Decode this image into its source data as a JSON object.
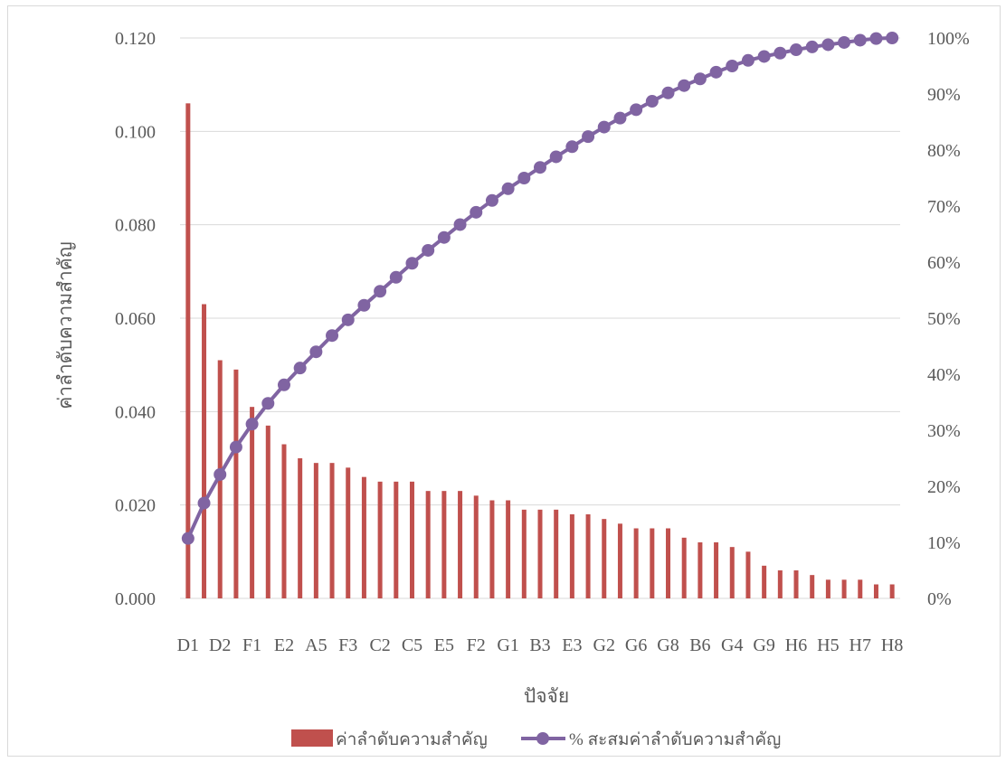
{
  "chart_data": {
    "type": "bar+line",
    "xlabel": "ปัจจัย",
    "ylabel": "ค่าลำดับความสำคัญ",
    "ylim": [
      0,
      0.12
    ],
    "y_ticks": [
      "0.000",
      "0.020",
      "0.040",
      "0.060",
      "0.080",
      "0.100",
      "0.120"
    ],
    "y2lim": [
      0,
      100
    ],
    "y2_ticks": [
      "0%",
      "10%",
      "20%",
      "30%",
      "40%",
      "50%",
      "60%",
      "70%",
      "80%",
      "90%",
      "100%"
    ],
    "x_tick_labels": [
      "D1",
      "D2",
      "F1",
      "E2",
      "A5",
      "F3",
      "C2",
      "C5",
      "E5",
      "F2",
      "G1",
      "B3",
      "E3",
      "G2",
      "G6",
      "G8",
      "B6",
      "G4",
      "G9",
      "H6",
      "H5",
      "H7",
      "H8"
    ],
    "x_tick_every": 2,
    "grid": true,
    "legend_position": "bottom",
    "series": [
      {
        "name": "ค่าลำดับความสำคัญ",
        "type": "bar",
        "color": "#c0504d",
        "values": [
          0.106,
          0.063,
          0.051,
          0.049,
          0.041,
          0.037,
          0.033,
          0.03,
          0.029,
          0.029,
          0.028,
          0.026,
          0.025,
          0.025,
          0.025,
          0.023,
          0.023,
          0.023,
          0.022,
          0.021,
          0.021,
          0.019,
          0.019,
          0.019,
          0.018,
          0.018,
          0.017,
          0.016,
          0.015,
          0.015,
          0.015,
          0.013,
          0.012,
          0.012,
          0.011,
          0.01,
          0.007,
          0.006,
          0.006,
          0.005,
          0.004,
          0.004,
          0.004,
          0.003,
          0.003
        ]
      },
      {
        "name": "% สะสมค่าลำดับความสำคัญ",
        "type": "line",
        "axis": "right",
        "color": "#8064a2",
        "values": [
          10.7,
          17.0,
          22.1,
          27.0,
          31.1,
          34.8,
          38.1,
          41.1,
          44.0,
          46.9,
          49.7,
          52.3,
          54.8,
          57.3,
          59.8,
          62.1,
          64.4,
          66.7,
          68.9,
          71.0,
          73.1,
          75.0,
          76.9,
          78.8,
          80.6,
          82.4,
          84.1,
          85.7,
          87.2,
          88.7,
          90.2,
          91.5,
          92.7,
          93.9,
          95.0,
          96.0,
          96.7,
          97.3,
          97.9,
          98.4,
          98.8,
          99.2,
          99.6,
          99.9,
          100.0
        ]
      }
    ]
  }
}
